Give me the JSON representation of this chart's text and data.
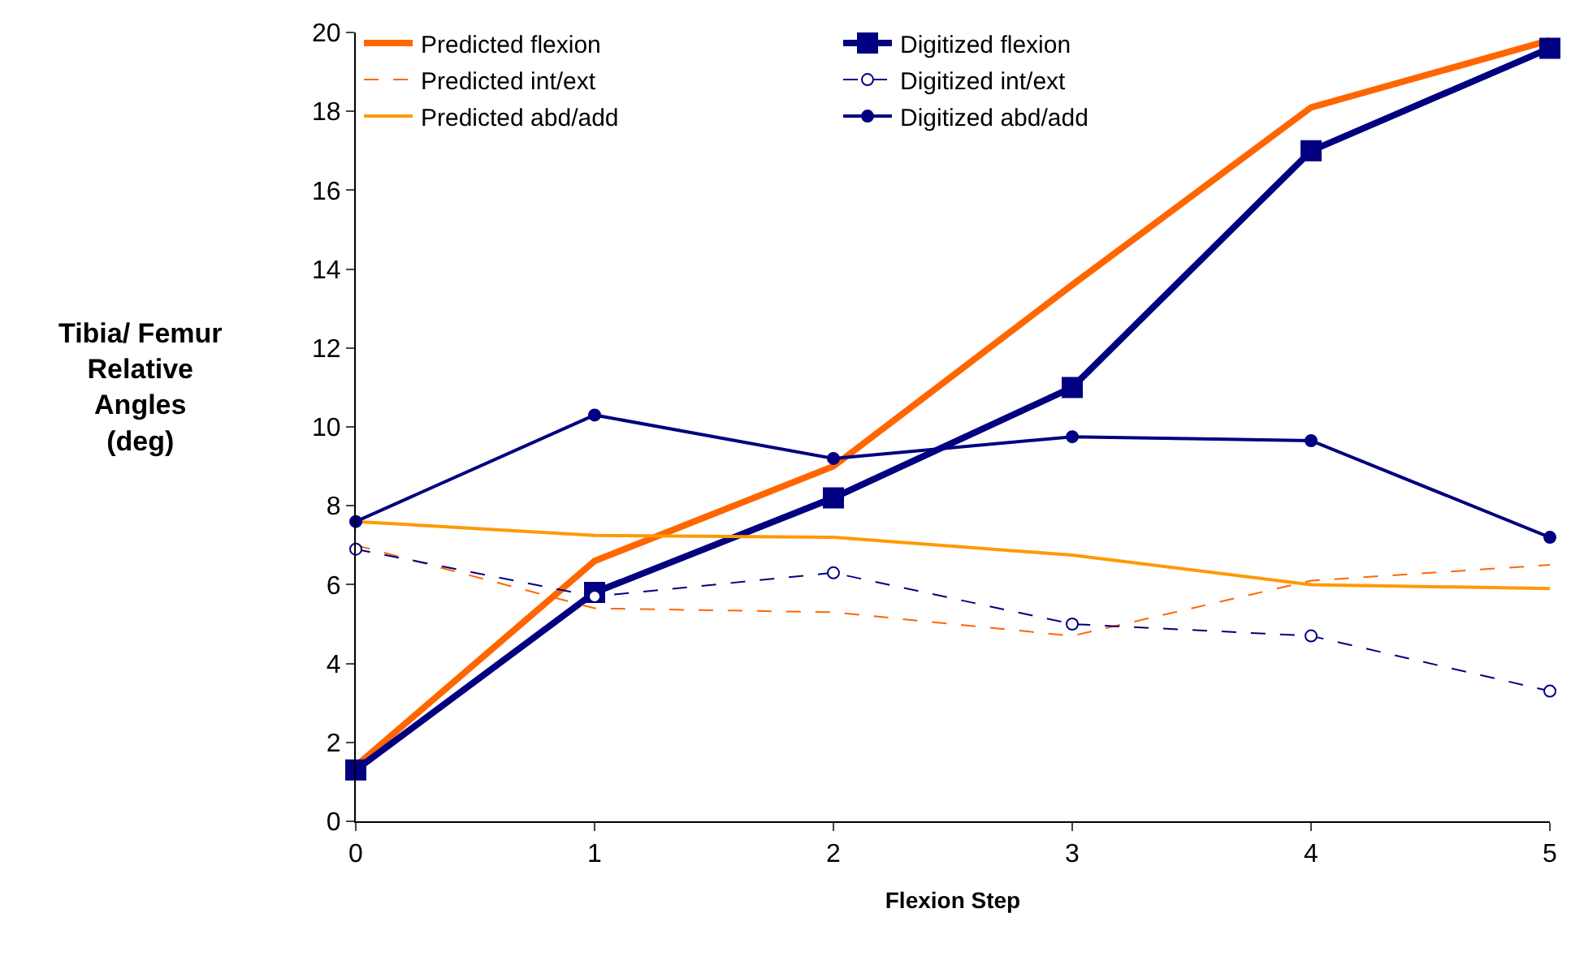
{
  "chart_data": {
    "type": "line",
    "xlabel": "Flexion Step",
    "ylabel": "Tibia/ Femur\nRelative\nAngles\n(deg)",
    "x": [
      0,
      1,
      2,
      3,
      4,
      5
    ],
    "xlim": [
      0,
      5
    ],
    "xticks": [
      0,
      1,
      2,
      3,
      4,
      5
    ],
    "ylim": [
      0,
      20
    ],
    "yticks": [
      0,
      2,
      4,
      6,
      8,
      10,
      12,
      14,
      16,
      18,
      20
    ],
    "legend": "top left",
    "series": [
      {
        "name": "Predicted flexion",
        "color": "#ff6600",
        "values": [
          1.4,
          6.6,
          9.0,
          13.6,
          18.1,
          19.8
        ],
        "line_style": "solid",
        "marker": "none"
      },
      {
        "name": "Digitized flexion",
        "color": "#000080",
        "values": [
          1.3,
          5.8,
          8.2,
          11.0,
          17.0,
          19.6
        ],
        "line_style": "solid",
        "marker": "square"
      },
      {
        "name": "Predicted int/ext",
        "color": "#ff6600",
        "values": [
          7.0,
          5.4,
          5.3,
          4.7,
          6.1,
          6.5
        ],
        "line_style": "dashed",
        "marker": "none"
      },
      {
        "name": "Digitized int/ext",
        "color": "#000080",
        "values": [
          6.9,
          5.7,
          6.3,
          5.0,
          4.7,
          3.3
        ],
        "line_style": "dashed",
        "marker": "circle"
      },
      {
        "name": "Predicted abd/add",
        "color": "#ff9900",
        "values": [
          7.6,
          7.25,
          7.2,
          6.75,
          6.0,
          5.9
        ],
        "line_style": "solid",
        "marker": "none"
      },
      {
        "name": "Digitized abd/add",
        "color": "#000080",
        "values": [
          7.6,
          10.3,
          9.2,
          9.75,
          9.65,
          7.2
        ],
        "line_style": "solid",
        "marker": "circle"
      }
    ]
  }
}
